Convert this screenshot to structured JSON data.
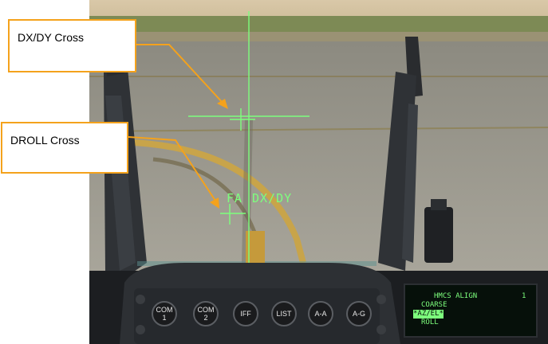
{
  "callouts": {
    "dxdy_cross": "DX/DY Cross",
    "droll_cross": "DROLL Cross"
  },
  "hud": {
    "left_text": "FA",
    "right_text": "DX/DY"
  },
  "icp": {
    "buttons": [
      "COM 1",
      "COM 2",
      "IFF",
      "LIST",
      "A-A",
      "A-G"
    ]
  },
  "ded": {
    "title": "HMCS ALIGN",
    "page_indicator": "1",
    "line_coarse": "COARSE",
    "line_azel": "*AZ/EL*",
    "line_roll": "ROLL"
  },
  "colors": {
    "callout_border": "#f4a21c",
    "hud_green": "#7dff7d"
  }
}
